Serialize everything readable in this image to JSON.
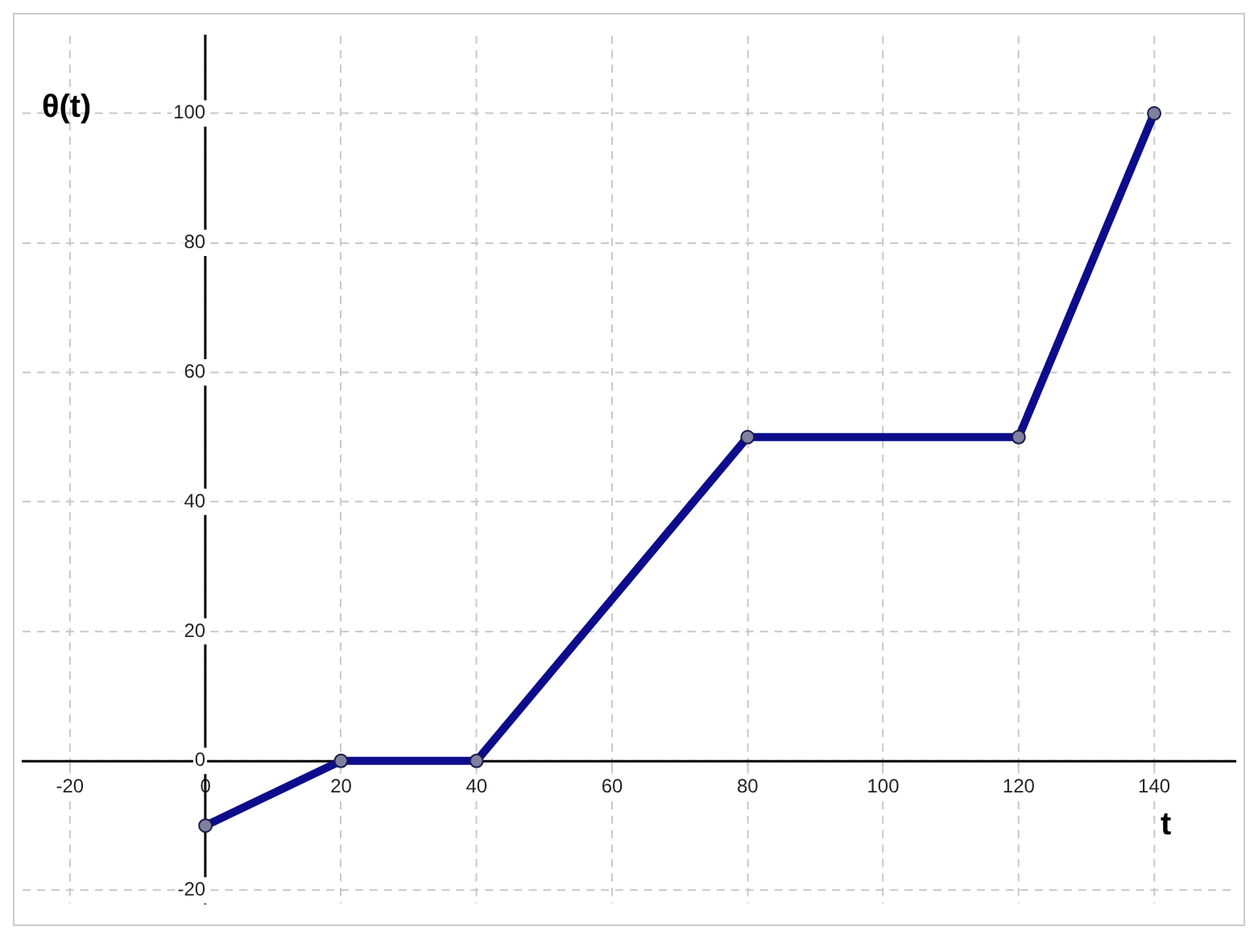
{
  "chart_data": {
    "type": "line",
    "xlabel": "t",
    "ylabel": "θ(t)",
    "x": [
      0,
      20,
      40,
      80,
      120,
      140
    ],
    "series": [
      {
        "color": "#0d0d8c",
        "values": [
          -10,
          0,
          0,
          50,
          50,
          100
        ]
      }
    ],
    "xlim": [
      -27,
      152
    ],
    "ylim": [
      -22,
      112
    ],
    "xticks": [
      -20,
      0,
      20,
      40,
      60,
      80,
      100,
      120,
      140
    ],
    "yticks": [
      -20,
      0,
      20,
      40,
      60,
      80,
      100
    ],
    "grid": true,
    "legend": false,
    "marker": "circle",
    "line_style": "solid"
  }
}
